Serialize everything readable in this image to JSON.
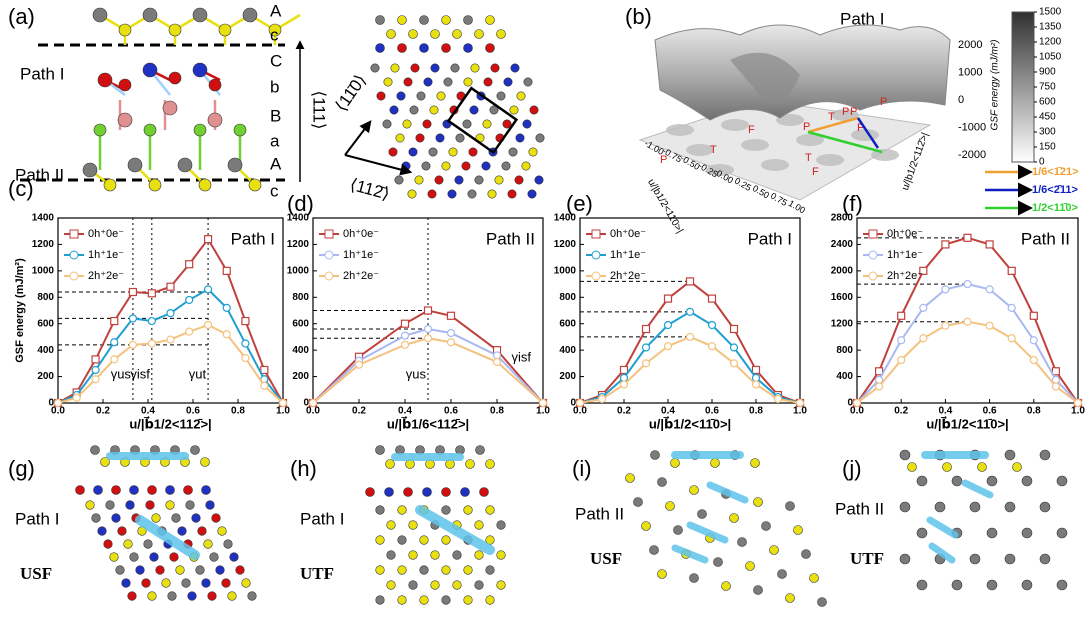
{
  "panel_labels": [
    "(a)",
    "(b)",
    "(c)",
    "(d)",
    "(e)",
    "(f)",
    "(g)",
    "(h)",
    "(i)",
    "(j)"
  ],
  "structure": {
    "layers": [
      "A",
      "c",
      "C",
      "b",
      "B",
      "a",
      "A",
      "c"
    ],
    "path_top": "Path I",
    "path_bottom": "Path II",
    "direction": "⟨111⟩",
    "in_plane": [
      "⟨11̄0⟩",
      "⟨112̄⟩"
    ]
  },
  "surface": {
    "title": "Path I",
    "zticks": [
      {
        "value": 2000,
        "label": "2000"
      },
      {
        "value": 1000,
        "label": "1000"
      },
      {
        "value": 0,
        "label": "0"
      },
      {
        "value": -1000,
        "label": "-1000"
      },
      {
        "value": -2000,
        "label": "-2000"
      }
    ],
    "axis_left": {
      "label": "u/|b1/2<11̄0>|",
      "ticks": [
        "-1.00",
        "-0.75",
        "-0.50",
        "-0.25",
        "0.00",
        "0.25",
        "0.50",
        "0.75",
        "1.00"
      ]
    },
    "axis_right": {
      "label": "u/|b1/2<112̄>|",
      "ticks": [
        "-0.75",
        "-0.50",
        "-0.25",
        "0.00",
        "0.25",
        "0.50",
        "0.75",
        "1.00"
      ]
    },
    "points": [
      "P",
      "T",
      "F",
      "P",
      "T",
      "F",
      "P",
      "P",
      "T",
      "F",
      "P"
    ],
    "colorbar": {
      "label": "GSF energy (mJ/m²)",
      "lim": [
        0,
        1500
      ],
      "ticks": [
        0,
        150,
        300,
        450,
        600,
        750,
        900,
        1050,
        1200,
        1350,
        1500
      ]
    },
    "vectors": [
      {
        "name": "1/6<1̄21>",
        "color": "#f0a030"
      },
      {
        "name": "1/6<2̄11>",
        "color": "#1020c0"
      },
      {
        "name": "1/2<11̄0>",
        "color": "#30d030"
      }
    ]
  },
  "chart_data": [
    {
      "type": "line",
      "title": "Path I",
      "xlabel": "u/|b⃗1/2<112̄>|",
      "ylabel": "GSF energy (mJ/m²)",
      "legend": "upper left",
      "x": [
        0,
        0.083,
        0.167,
        0.25,
        0.333,
        0.417,
        0.5,
        0.583,
        0.667,
        0.75,
        0.833,
        0.917,
        1
      ],
      "series": [
        {
          "name": "0h⁺0e⁻",
          "color": "#c0403c",
          "marker": "square",
          "values": [
            0,
            80,
            330,
            620,
            840,
            830,
            880,
            1050,
            1240,
            1000,
            620,
            250,
            0
          ]
        },
        {
          "name": "1h⁺1e⁻",
          "color": "#1e9fd0",
          "marker": "circle",
          "values": [
            0,
            60,
            250,
            460,
            640,
            620,
            680,
            780,
            860,
            720,
            450,
            180,
            0
          ]
        },
        {
          "name": "2h⁺2e⁻",
          "color": "#f4c27e",
          "marker": "circle",
          "values": [
            0,
            40,
            180,
            330,
            440,
            450,
            480,
            540,
            590,
            520,
            340,
            130,
            0
          ]
        }
      ],
      "xlim": [
        0,
        1
      ],
      "ylim": [
        0,
        1400
      ],
      "xticks": [
        {
          "value": 0,
          "label": "0.0"
        },
        0.2,
        0.4,
        0.6,
        0.8,
        {
          "value": 1,
          "label": "1.0"
        }
      ],
      "yticks": [
        0,
        200,
        400,
        600,
        800,
        1000,
        1200,
        1400
      ],
      "hlines": [
        840,
        640,
        440
      ],
      "vlines": [
        0.333,
        0.417,
        0.667
      ],
      "annotations": [
        "γus",
        "γisf",
        "γut"
      ]
    },
    {
      "type": "line",
      "title": "Path II",
      "xlabel": "u/|b⃗1/6<112̄>|",
      "legend": "upper left",
      "x": [
        0,
        0.2,
        0.4,
        0.5,
        0.6,
        0.8,
        1
      ],
      "series": [
        {
          "name": "0h⁺0e⁻",
          "color": "#c0403c",
          "marker": "square",
          "values": [
            0,
            350,
            600,
            700,
            660,
            400,
            0
          ]
        },
        {
          "name": "1h⁺1e⁻",
          "color": "#a8b8f0",
          "marker": "circle",
          "values": [
            0,
            320,
            510,
            560,
            530,
            360,
            0
          ]
        },
        {
          "name": "2h⁺2e⁻",
          "color": "#f4c27e",
          "marker": "circle",
          "values": [
            0,
            290,
            440,
            490,
            460,
            310,
            0
          ]
        }
      ],
      "xlim": [
        0,
        1
      ],
      "ylim": [
        0,
        1400
      ],
      "xticks": [
        {
          "value": 0,
          "label": "0.0"
        },
        0.2,
        0.4,
        0.6,
        0.8,
        {
          "value": 1,
          "label": "1.0"
        }
      ],
      "yticks": [
        0,
        200,
        400,
        600,
        800,
        1000,
        1200,
        1400
      ],
      "hlines": [
        700,
        560,
        490
      ],
      "vlines": [
        0.5
      ],
      "annotations": [
        "γus",
        "γisf"
      ]
    },
    {
      "type": "line",
      "title": "Path I",
      "xlabel": "u/|b⃗1/2<11̄0>|",
      "legend": "upper left",
      "x": [
        0,
        0.1,
        0.2,
        0.3,
        0.4,
        0.5,
        0.6,
        0.7,
        0.8,
        0.9,
        1
      ],
      "series": [
        {
          "name": "0h⁺0e⁻",
          "color": "#c0403c",
          "marker": "square",
          "values": [
            0,
            60,
            250,
            560,
            790,
            920,
            790,
            560,
            250,
            60,
            0
          ]
        },
        {
          "name": "1h⁺1e⁻",
          "color": "#1e9fd0",
          "marker": "circle",
          "values": [
            0,
            45,
            190,
            420,
            590,
            690,
            590,
            420,
            190,
            45,
            0
          ]
        },
        {
          "name": "2h⁺2e⁻",
          "color": "#f4c27e",
          "marker": "circle",
          "values": [
            0,
            30,
            140,
            300,
            430,
            500,
            430,
            300,
            140,
            30,
            0
          ]
        }
      ],
      "xlim": [
        0,
        1
      ],
      "ylim": [
        0,
        1400
      ],
      "xticks": [
        {
          "value": 0,
          "label": "0.0"
        },
        0.2,
        0.4,
        0.6,
        0.8,
        {
          "value": 1,
          "label": "1.0"
        }
      ],
      "yticks": [
        0,
        200,
        400,
        600,
        800,
        1000,
        1200,
        1400
      ],
      "hlines": [
        920,
        690,
        500
      ],
      "vlines": [],
      "annotations": []
    },
    {
      "type": "line",
      "title": "Path II",
      "xlabel": "u/|b⃗1/2<11̄0>|",
      "legend": "upper left",
      "x": [
        0,
        0.1,
        0.2,
        0.3,
        0.4,
        0.5,
        0.6,
        0.7,
        0.8,
        0.9,
        1
      ],
      "series": [
        {
          "name": "0h⁺0e⁻",
          "color": "#c0403c",
          "marker": "square",
          "values": [
            0,
            480,
            1320,
            2000,
            2400,
            2500,
            2400,
            2000,
            1320,
            480,
            0
          ]
        },
        {
          "name": "1h⁺1e⁻",
          "color": "#a8b8f0",
          "marker": "circle",
          "values": [
            0,
            350,
            950,
            1440,
            1720,
            1800,
            1720,
            1440,
            950,
            350,
            0
          ]
        },
        {
          "name": "2h⁺2e⁻",
          "color": "#f4c27e",
          "marker": "circle",
          "values": [
            0,
            250,
            650,
            980,
            1170,
            1230,
            1170,
            980,
            650,
            250,
            0
          ]
        }
      ],
      "xlim": [
        0,
        1
      ],
      "ylim": [
        0,
        2800
      ],
      "xticks": [
        {
          "value": 0,
          "label": "0.0"
        },
        0.2,
        0.4,
        0.6,
        0.8,
        {
          "value": 1,
          "label": "1.0"
        }
      ],
      "yticks": [
        0,
        400,
        800,
        1200,
        1600,
        2000,
        2400,
        2800
      ],
      "hlines": [
        2500,
        1800,
        1230
      ],
      "vlines": [],
      "annotations": []
    }
  ],
  "snapshots": [
    {
      "path": "Path I",
      "fault": "USF"
    },
    {
      "path": "Path I",
      "fault": "UTF"
    },
    {
      "path": "Path II",
      "fault": "USF"
    },
    {
      "path": "Path II",
      "fault": "UTF"
    }
  ]
}
